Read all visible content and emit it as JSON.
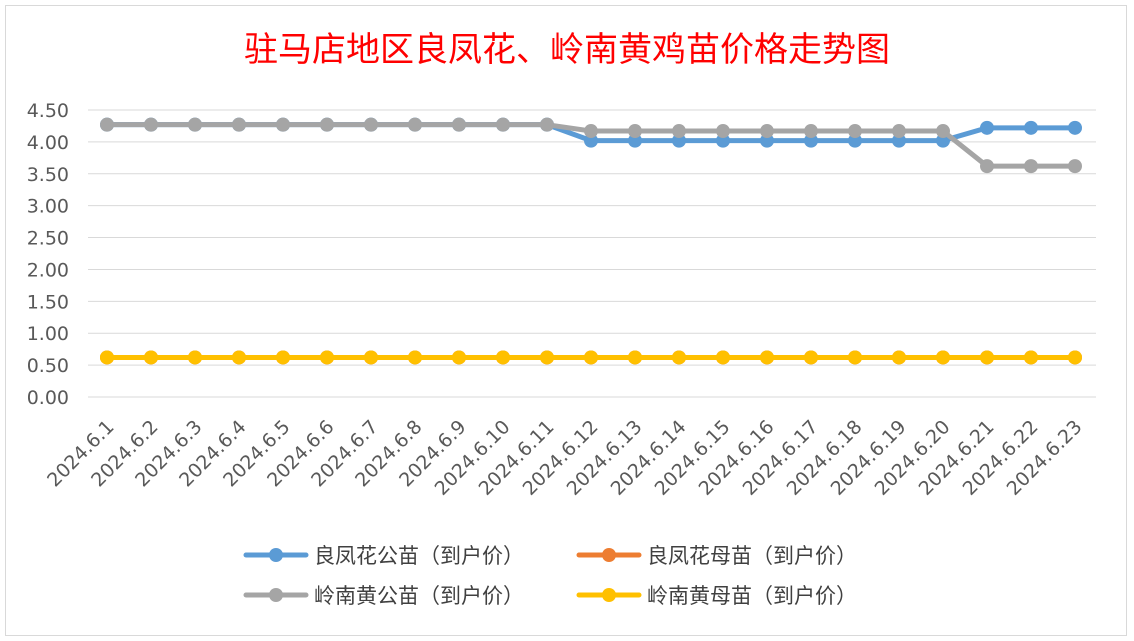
{
  "chart_data": {
    "type": "line",
    "title": "驻马店地区良凤花、岭南黄鸡苗价格走势图",
    "xlabel": "",
    "ylabel": "",
    "ylim": [
      0,
      4.5
    ],
    "yticks": [
      "0.00",
      "0.50",
      "1.00",
      "1.50",
      "2.00",
      "2.50",
      "3.00",
      "3.50",
      "4.00",
      "4.50"
    ],
    "grid": true,
    "legend_position": "bottom",
    "categories": [
      "2024.6.1",
      "2024.6.2",
      "2024.6.3",
      "2024.6.4",
      "2024.6.5",
      "2024.6.6",
      "2024.6.7",
      "2024.6.8",
      "2024.6.9",
      "2024.6.10",
      "2024.6.11",
      "2024.6.12",
      "2024.6.13",
      "2024.6.14",
      "2024.6.15",
      "2024.6.16",
      "2024.6.17",
      "2024.6.18",
      "2024.6.19",
      "2024.6.20",
      "2024.6.21",
      "2024.6.22",
      "2024.6.23"
    ],
    "series": [
      {
        "name": "良凤花公苗（到户价）",
        "color": "#5b9bd5",
        "values": [
          4.27,
          4.27,
          4.27,
          4.27,
          4.27,
          4.27,
          4.27,
          4.27,
          4.27,
          4.27,
          4.27,
          4.02,
          4.02,
          4.02,
          4.02,
          4.02,
          4.02,
          4.02,
          4.02,
          4.02,
          4.22,
          4.22,
          4.22
        ]
      },
      {
        "name": "良凤花母苗（到户价）",
        "color": "#ed7d31",
        "values": [
          0.62,
          0.62,
          0.62,
          0.62,
          0.62,
          0.62,
          0.62,
          0.62,
          0.62,
          0.62,
          0.62,
          0.62,
          0.62,
          0.62,
          0.62,
          0.62,
          0.62,
          0.62,
          0.62,
          0.62,
          0.62,
          0.62,
          0.62
        ]
      },
      {
        "name": "岭南黄公苗（到户价）",
        "color": "#a5a5a5",
        "values": [
          4.27,
          4.27,
          4.27,
          4.27,
          4.27,
          4.27,
          4.27,
          4.27,
          4.27,
          4.27,
          4.27,
          4.17,
          4.17,
          4.17,
          4.17,
          4.17,
          4.17,
          4.17,
          4.17,
          4.17,
          3.62,
          3.62,
          3.62
        ]
      },
      {
        "name": "岭南黄母苗（到户价）",
        "color": "#ffc000",
        "values": [
          0.62,
          0.62,
          0.62,
          0.62,
          0.62,
          0.62,
          0.62,
          0.62,
          0.62,
          0.62,
          0.62,
          0.62,
          0.62,
          0.62,
          0.62,
          0.62,
          0.62,
          0.62,
          0.62,
          0.62,
          0.62,
          0.62,
          0.62
        ]
      }
    ],
    "title_color": "#ff0000"
  }
}
